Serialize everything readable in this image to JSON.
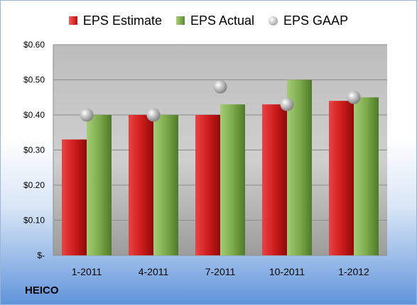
{
  "company": "HEICO",
  "chart_data": {
    "type": "bar",
    "categories": [
      "1-2011",
      "4-2011",
      "7-2011",
      "10-2011",
      "1-2012"
    ],
    "series": [
      {
        "name": "EPS Estimate",
        "values": [
          0.33,
          0.4,
          0.4,
          0.43,
          0.44
        ],
        "color": "#d21f1f",
        "mark": "bar"
      },
      {
        "name": "EPS Actual",
        "values": [
          0.4,
          0.4,
          0.43,
          0.5,
          0.45
        ],
        "color": "#7fae4f",
        "mark": "bar"
      },
      {
        "name": "EPS GAAP",
        "values": [
          0.4,
          0.4,
          0.48,
          0.43,
          0.45
        ],
        "color": "#a6a6a6",
        "mark": "sphere"
      }
    ],
    "yticks": [
      {
        "value": 0.0,
        "label": "$-"
      },
      {
        "value": 0.1,
        "label": "$0.10"
      },
      {
        "value": 0.2,
        "label": "$0.20"
      },
      {
        "value": 0.3,
        "label": "$0.30"
      },
      {
        "value": 0.4,
        "label": "$0.40"
      },
      {
        "value": 0.5,
        "label": "$0.50"
      },
      {
        "value": 0.6,
        "label": "$0.60"
      }
    ],
    "ylim": [
      0,
      0.6
    ],
    "grid": true,
    "legend": "top"
  }
}
